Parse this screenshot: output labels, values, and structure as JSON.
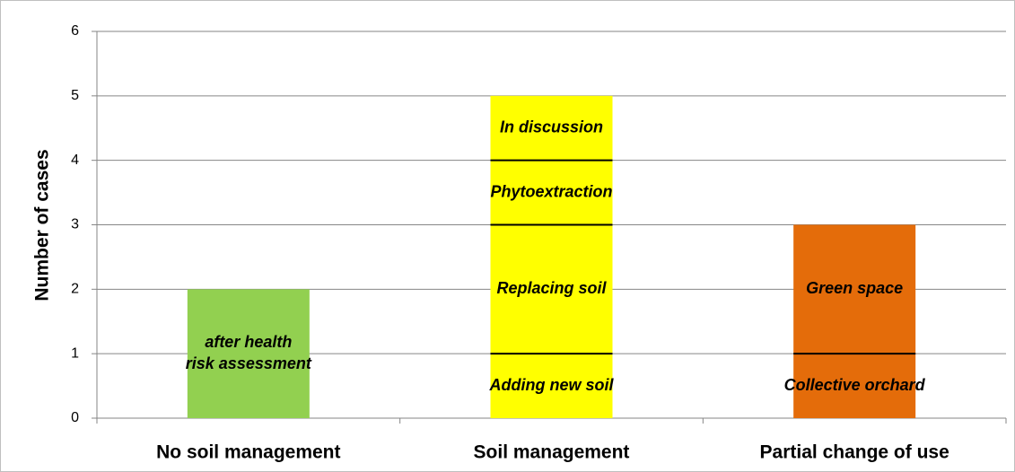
{
  "chart_data": {
    "type": "stacked-bar",
    "y_label": "Number of cases",
    "ylim": [
      0,
      6
    ],
    "yticks": [
      0,
      1,
      2,
      3,
      4,
      5,
      6
    ],
    "grid": true,
    "categories": [
      "No soil management",
      "Soil management",
      "Partial change of use"
    ],
    "bars": [
      {
        "color": "#92d050",
        "segments": [
          {
            "label": [
              "after health",
              "risk assessment"
            ],
            "value": 2
          }
        ]
      },
      {
        "color": "#ffff00",
        "segments": [
          {
            "label": [
              "Adding new soil"
            ],
            "value": 1
          },
          {
            "label": [
              "Replacing soil"
            ],
            "value": 2
          },
          {
            "label": [
              "Phytoextraction"
            ],
            "value": 1
          },
          {
            "label": [
              "In discussion"
            ],
            "value": 1
          }
        ]
      },
      {
        "color": "#e46c0a",
        "segments": [
          {
            "label": [
              "Collective orchard"
            ],
            "value": 1
          },
          {
            "label": [
              "Green space"
            ],
            "value": 2
          }
        ]
      }
    ]
  }
}
